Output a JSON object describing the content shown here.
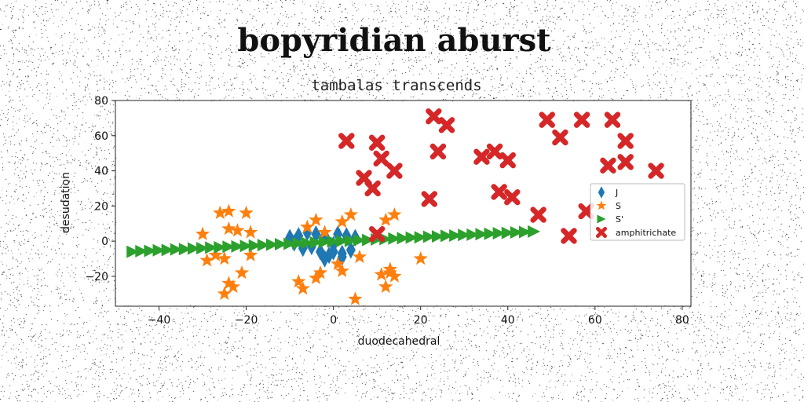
{
  "title": "bopyridian aburst",
  "subtitle": "tambalas transcends",
  "chart_data": {
    "type": "scatter",
    "title": "bopyridian aburst",
    "subtitle": "tambalas transcends",
    "xlabel": "duodecahedral",
    "ylabel": "desudation",
    "xlim": [
      -50,
      82
    ],
    "ylim": [
      -37,
      80
    ],
    "xticks": [
      -40,
      -20,
      0,
      20,
      40,
      60,
      80
    ],
    "yticks": [
      -20,
      0,
      20,
      40,
      60,
      80
    ],
    "xtick_labels": [
      "−40",
      "−20",
      "0",
      "20",
      "40",
      "60",
      "80"
    ],
    "ytick_labels": [
      "−20",
      "0",
      "20",
      "40",
      "60",
      "80"
    ],
    "grid": false,
    "legend_position": "right",
    "series": [
      {
        "name": "J",
        "marker": "diamond",
        "color": "#1f77b4",
        "x": [
          -10,
          -9,
          -8,
          -7,
          -6,
          -5,
          -4,
          -3,
          -2,
          -1,
          0,
          1,
          2,
          3,
          4,
          5,
          -2,
          0,
          2
        ],
        "y": [
          2,
          -1,
          3,
          -4,
          5,
          -3,
          4,
          -6,
          3,
          -8,
          -2,
          4,
          -7,
          3,
          -5,
          2,
          -10,
          -6,
          -9
        ]
      },
      {
        "name": "S",
        "marker": "star",
        "color": "#ff7f0e",
        "x": [
          -26,
          -24,
          -20,
          -24,
          -22,
          -19,
          -30,
          -29,
          -27,
          -25,
          -19,
          -21,
          -24,
          -6,
          -4,
          -2,
          2,
          4,
          12,
          14,
          13,
          11,
          -8,
          -7,
          -4,
          -3,
          1,
          2,
          6,
          13,
          14,
          12,
          20,
          5,
          -23,
          -25
        ],
        "y": [
          16,
          17,
          16,
          7,
          6,
          5,
          4,
          -11,
          -8,
          -10,
          -8,
          -18,
          -24,
          8,
          12,
          5,
          11,
          15,
          12,
          15,
          -18,
          -19,
          -23,
          -27,
          -21,
          -18,
          -13,
          -17,
          -9,
          -16,
          -20,
          -26,
          -10,
          -33,
          -26,
          -30
        ]
      },
      {
        "name": "S'",
        "marker": "triangle-right",
        "color": "#2ca02c",
        "x": [
          -46,
          -44,
          -42,
          -40,
          -38,
          -36,
          -34,
          -32,
          -30,
          -28,
          -26,
          -24,
          -22,
          -20,
          -18,
          -16,
          -14,
          -12,
          -10,
          -8,
          -6,
          -4,
          -2,
          0,
          2,
          4,
          6,
          8,
          10,
          12,
          14,
          16,
          18,
          20,
          22,
          24,
          26,
          28,
          30,
          32,
          34,
          36,
          38,
          40,
          42,
          44,
          46
        ],
        "y": [
          -6,
          -5.7,
          -5.5,
          -5.2,
          -5,
          -4.7,
          -4.5,
          -4.2,
          -4,
          -3.7,
          -3.5,
          -3.2,
          -3,
          -2.7,
          -2.5,
          -2.2,
          -2,
          -1.7,
          -1.5,
          -1.2,
          -1,
          -0.7,
          -0.5,
          -0.2,
          0,
          0.2,
          0.5,
          0.7,
          1,
          1.2,
          1.5,
          1.7,
          2,
          2.2,
          2.5,
          2.7,
          3,
          3.2,
          3.5,
          3.7,
          4,
          4.2,
          4.5,
          4.7,
          5,
          5.2,
          5.5
        ]
      },
      {
        "name": "amphitrichate",
        "marker": "x",
        "color": "#d62728",
        "x": [
          3,
          10,
          11,
          14,
          7,
          9,
          23,
          26,
          24,
          34,
          37,
          40,
          38,
          41,
          49,
          52,
          57,
          64,
          67,
          67,
          63,
          74,
          22,
          47,
          54,
          58,
          10
        ],
        "y": [
          57,
          56,
          47,
          40,
          36,
          30,
          71,
          66,
          51,
          48,
          51,
          46,
          28,
          25,
          69,
          59,
          69,
          69,
          57,
          45,
          43,
          40,
          24,
          15,
          3,
          17,
          4
        ]
      }
    ]
  }
}
